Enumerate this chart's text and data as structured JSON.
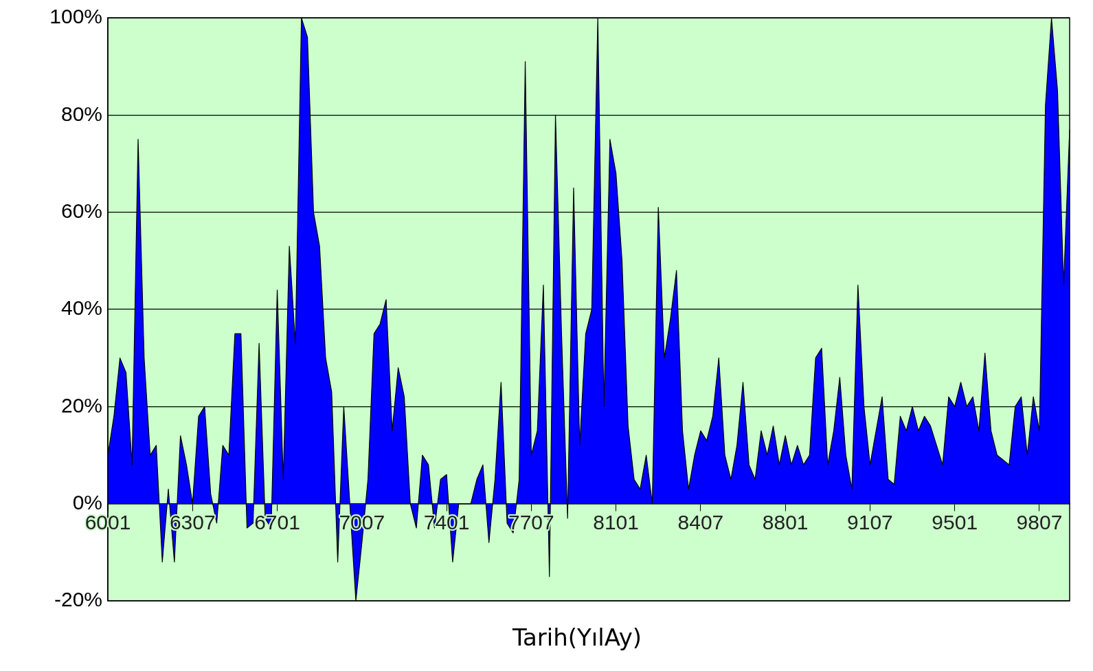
{
  "chart_data": {
    "type": "area",
    "xlabel": "Tarih(YılAy)",
    "categories": [
      "6001",
      null,
      null,
      null,
      null,
      null,
      null,
      null,
      null,
      null,
      null,
      null,
      null,
      null,
      "6307",
      null,
      null,
      null,
      null,
      null,
      null,
      null,
      null,
      null,
      null,
      null,
      null,
      null,
      "6701",
      null,
      null,
      null,
      null,
      null,
      null,
      null,
      null,
      null,
      null,
      null,
      null,
      null,
      "7007",
      null,
      null,
      null,
      null,
      null,
      null,
      null,
      null,
      null,
      null,
      null,
      null,
      null,
      "7401",
      null,
      null,
      null,
      null,
      null,
      null,
      null,
      null,
      null,
      null,
      null,
      null,
      null,
      "7707",
      null,
      null,
      null,
      null,
      null,
      null,
      null,
      null,
      null,
      null,
      null,
      null,
      null,
      "8101",
      null,
      null,
      null,
      null,
      null,
      null,
      null,
      null,
      null,
      null,
      null,
      null,
      null,
      "8407",
      null,
      null,
      null,
      null,
      null,
      null,
      null,
      null,
      null,
      null,
      null,
      null,
      null,
      "8801",
      null,
      null,
      null,
      null,
      null,
      null,
      null,
      null,
      null,
      null,
      null,
      null,
      null,
      "9107",
      null,
      null,
      null,
      null,
      null,
      null,
      null,
      null,
      null,
      null,
      null,
      null,
      null,
      "9501",
      null,
      null,
      null,
      null,
      null,
      null,
      null,
      null,
      null,
      null,
      null,
      null,
      null,
      "9807",
      null,
      null,
      null,
      null,
      null
    ],
    "series": [
      {
        "color": "#0000ff",
        "values": [
          10,
          18,
          30,
          27,
          8,
          75,
          30,
          10,
          12,
          -12,
          3,
          -12,
          14,
          8,
          0,
          18,
          20,
          2,
          -4,
          12,
          10,
          35,
          35,
          -5,
          -4,
          33,
          -3,
          -5,
          44,
          5,
          53,
          33,
          100,
          96,
          60,
          53,
          30,
          23,
          -12,
          20,
          0,
          -20,
          -8,
          5,
          35,
          37,
          42,
          15,
          28,
          22,
          0,
          -5,
          10,
          8,
          -5,
          5,
          6,
          -12,
          0,
          0,
          0,
          5,
          8,
          -8,
          5,
          25,
          -4,
          -6,
          5,
          91,
          10,
          15,
          45,
          -15,
          80,
          35,
          -3,
          65,
          12,
          35,
          40,
          100,
          20,
          75,
          68,
          50,
          16,
          5,
          3,
          10,
          0,
          61,
          30,
          38,
          48,
          15,
          3,
          10,
          15,
          13,
          18,
          30,
          10,
          5,
          12,
          25,
          8,
          5,
          15,
          10,
          16,
          8,
          14,
          8,
          12,
          8,
          10,
          30,
          32,
          8,
          15,
          26,
          10,
          3,
          45,
          20,
          8,
          15,
          22,
          5,
          4,
          18,
          15,
          20,
          15,
          18,
          16,
          12,
          8,
          22,
          20,
          25,
          20,
          22,
          15,
          31,
          15,
          10,
          9,
          8,
          20,
          22,
          10,
          22,
          15,
          82,
          100,
          85,
          45,
          77
        ]
      }
    ],
    "ylim": [
      -20,
      100
    ],
    "yticks": [
      {
        "value": -20,
        "label": "-20%"
      },
      {
        "value": 0,
        "label": "0%"
      },
      {
        "value": 20,
        "label": "20%"
      },
      {
        "value": 40,
        "label": "40%"
      },
      {
        "value": 60,
        "label": "60%"
      },
      {
        "value": 80,
        "label": "80%"
      },
      {
        "value": 100,
        "label": "100%"
      }
    ],
    "grid": "y"
  }
}
